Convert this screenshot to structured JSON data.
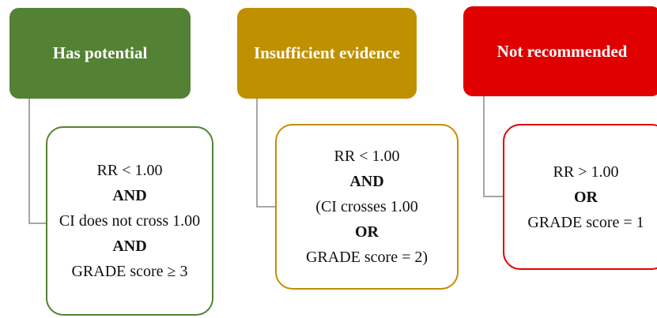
{
  "nodes": [
    {
      "title": "Has potential",
      "lines": [
        "RR < 1.00",
        "AND",
        "CI does not cross 1.00",
        "AND",
        "GRADE score ≥ 3"
      ]
    },
    {
      "title": "Insufficient evidence",
      "lines": [
        "RR < 1.00",
        "AND",
        "(CI crosses 1.00",
        "OR",
        "GRADE score = 2)"
      ]
    },
    {
      "title": "Not recommended",
      "lines": [
        "RR > 1.00",
        "OR",
        "GRADE score = 1"
      ]
    }
  ]
}
